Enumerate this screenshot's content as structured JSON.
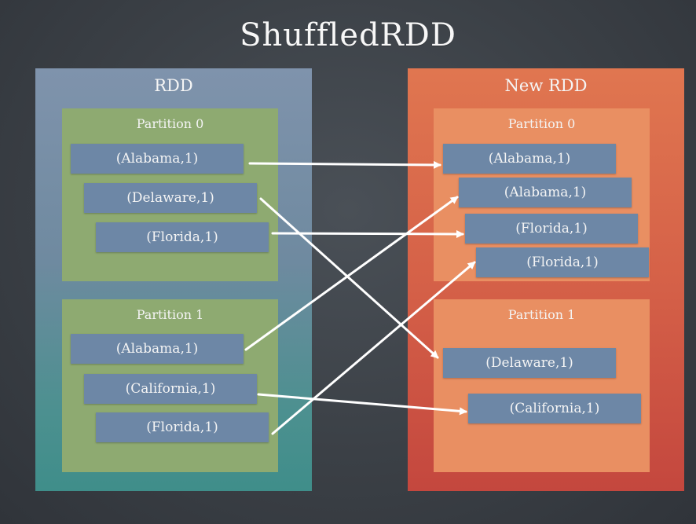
{
  "title": "ShuffledRDD",
  "source_rdd": {
    "label": "RDD",
    "partitions": [
      {
        "label": "Partition 0",
        "records": [
          "(Alabama,1)",
          "(Delaware,1)",
          "(Florida,1)"
        ]
      },
      {
        "label": "Partition 1",
        "records": [
          "(Alabama,1)",
          "(California,1)",
          "(Florida,1)"
        ]
      }
    ]
  },
  "target_rdd": {
    "label": "New RDD",
    "partitions": [
      {
        "label": "Partition 0",
        "records": [
          "(Alabama,1)",
          "(Alabama,1)",
          "(Florida,1)",
          "(Florida,1)"
        ]
      },
      {
        "label": "Partition 1",
        "records": [
          "(Delaware,1)",
          "(California,1)"
        ]
      }
    ]
  },
  "colors": {
    "source_rdd": "#7f93ac",
    "source_partition": "#8eaa71",
    "target_rdd": "#d56148",
    "target_partition": "#e98f62",
    "record": "#6d87a6",
    "arrow": "#ffffff"
  }
}
